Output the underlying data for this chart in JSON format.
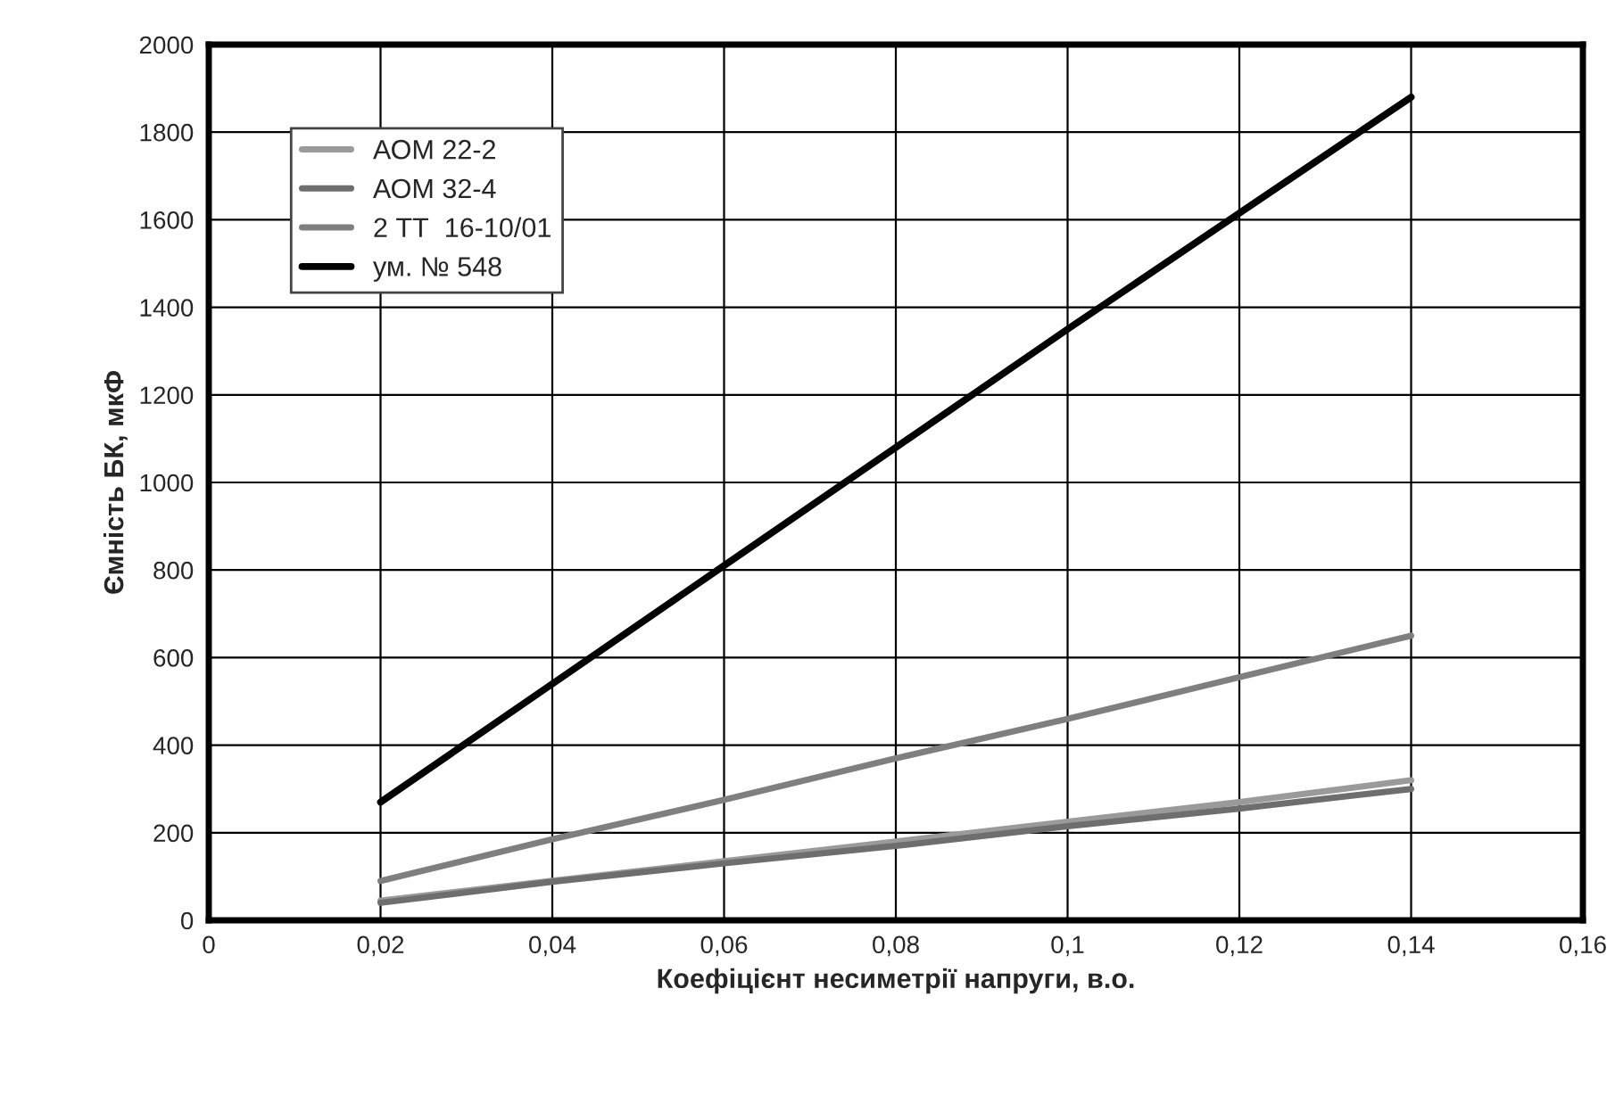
{
  "chart_data": {
    "type": "line",
    "xlabel": "Коефіцієнт несиметрії напруги, в.о.",
    "ylabel": "Ємність БК, мкФ",
    "x": [
      0.02,
      0.04,
      0.06,
      0.08,
      0.1,
      0.12,
      0.14
    ],
    "series": [
      {
        "name": "АОМ 22-2",
        "color": "#9a9a9a",
        "values": [
          45,
          90,
          135,
          180,
          225,
          270,
          320
        ]
      },
      {
        "name": "АОМ 32-4",
        "color": "#6e6e6e",
        "values": [
          40,
          88,
          130,
          170,
          215,
          255,
          300
        ]
      },
      {
        "name": "2 ТТ  16-10/01",
        "color": "#7f7f7f",
        "values": [
          90,
          185,
          275,
          370,
          460,
          555,
          650
        ]
      },
      {
        "name": "ум. № 548",
        "color": "#000000",
        "values": [
          270,
          540,
          810,
          1080,
          1350,
          1615,
          1880
        ]
      }
    ],
    "xlim": [
      0,
      0.16
    ],
    "xticks": [
      {
        "value": 0,
        "label": "0"
      },
      {
        "value": 0.02,
        "label": "0,02"
      },
      {
        "value": 0.04,
        "label": "0,04"
      },
      {
        "value": 0.06,
        "label": "0,06"
      },
      {
        "value": 0.08,
        "label": "0,08"
      },
      {
        "value": 0.1,
        "label": "0,1"
      },
      {
        "value": 0.12,
        "label": "0,12"
      },
      {
        "value": 0.14,
        "label": "0,14"
      },
      {
        "value": 0.16,
        "label": "0,16"
      }
    ],
    "ylim": [
      0,
      2000
    ],
    "yticks": [
      0,
      200,
      400,
      600,
      800,
      1000,
      1200,
      1400,
      1600,
      1800,
      2000
    ],
    "grid": true,
    "legend": "top left",
    "marker": "none",
    "line_style": "solid"
  }
}
